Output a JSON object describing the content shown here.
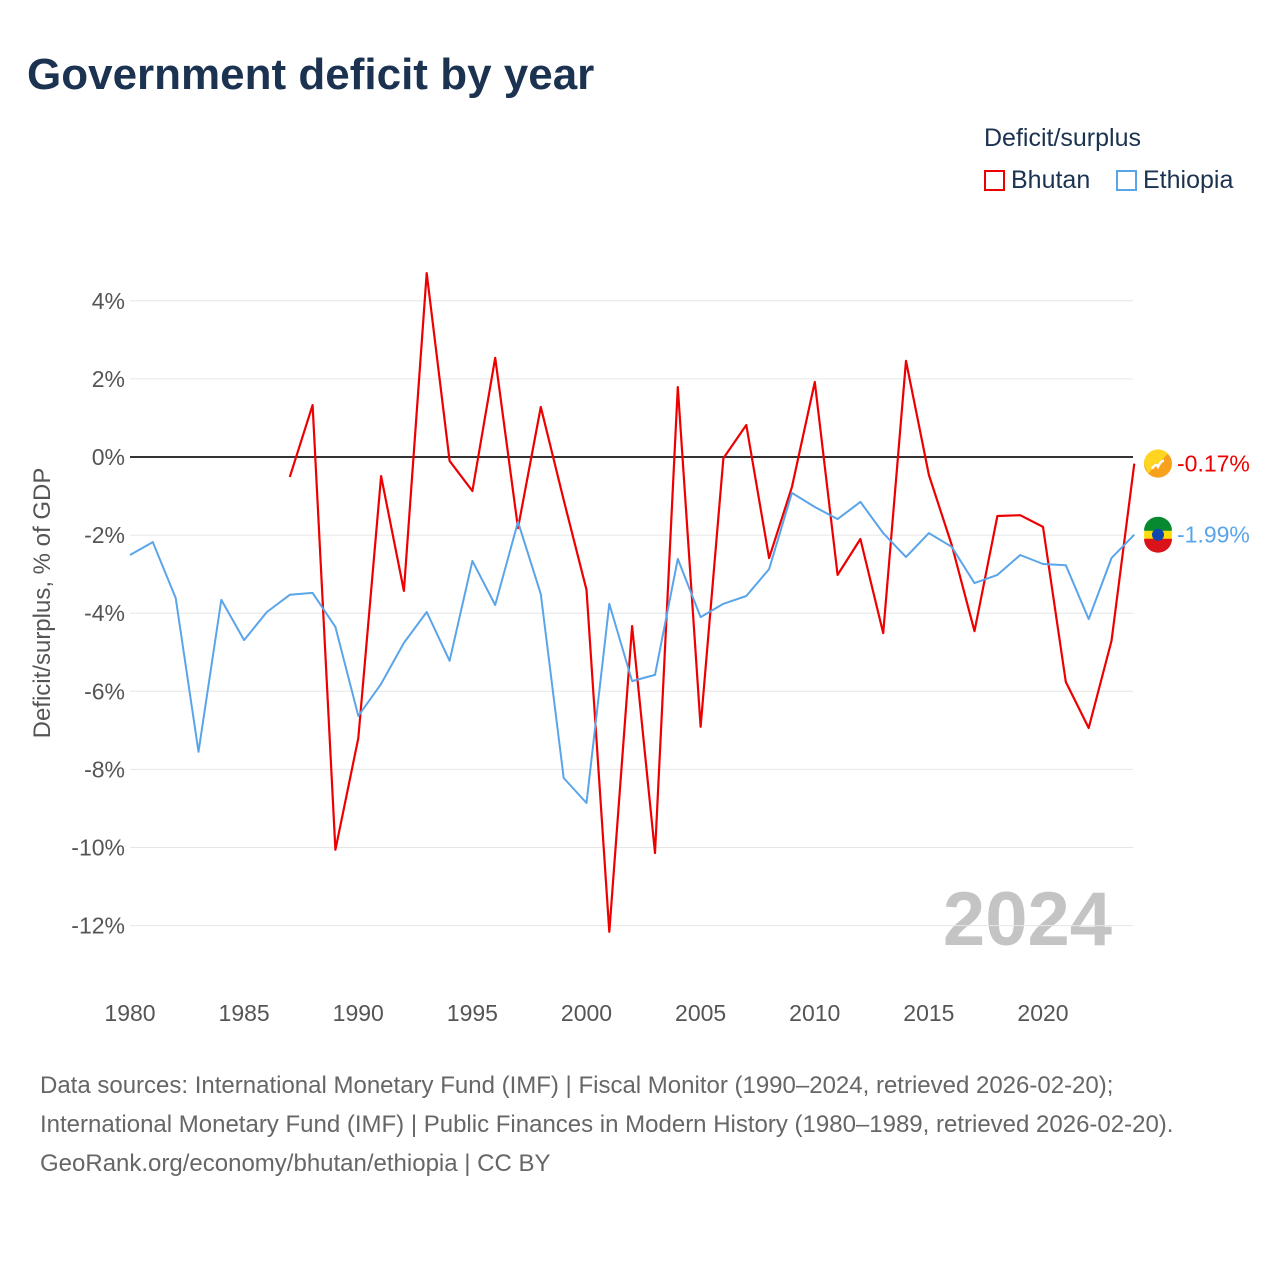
{
  "title": "Government deficit by year",
  "legend": {
    "title": "Deficit/surplus",
    "items": [
      {
        "name": "Bhutan",
        "color": "#ee0000"
      },
      {
        "name": "Ethiopia",
        "color": "#5aa5ea"
      }
    ]
  },
  "watermark_year": "2024",
  "footer": {
    "sources": "Data sources: International Monetary Fund (IMF) | Fiscal Monitor (1990–2024, retrieved 2026-02-20); International Monetary Fund (IMF) | Public Finances in Modern History (1980–1989, retrieved 2026-02-20).",
    "credit": "GeoRank.org/economy/bhutan/ethiopia | CC BY"
  },
  "chart_data": {
    "type": "line",
    "title": "Government deficit by year",
    "xlabel": "",
    "ylabel": "Deficit/surplus, % of GDP",
    "xlim": [
      1980,
      2024
    ],
    "ylim": [
      -13.5,
      5
    ],
    "xticks": [
      1980,
      1985,
      1990,
      1995,
      2000,
      2005,
      2010,
      2015,
      2020
    ],
    "yticks": [
      4,
      2,
      0,
      -2,
      -4,
      -6,
      -8,
      -10,
      -12
    ],
    "ytick_labels": [
      "4%",
      "2%",
      "0%",
      "-2%",
      "-4%",
      "-6%",
      "-8%",
      "-10%",
      "-12%"
    ],
    "grid": true,
    "legend_position": "top-right",
    "end_labels": [
      "-0.17%",
      "-1.99%"
    ],
    "series": [
      {
        "name": "Bhutan",
        "color": "#ee0000",
        "start_year": 1987,
        "values": [
          -0.51,
          1.33,
          -10.06,
          -7.2,
          -0.49,
          -3.43,
          4.71,
          -0.1,
          -0.87,
          2.54,
          -1.82,
          1.28,
          -1.1,
          -3.4,
          -12.16,
          -4.33,
          -10.14,
          1.79,
          -6.91,
          -0.03,
          0.82,
          -2.59,
          -0.77,
          1.92,
          -3.02,
          -2.1,
          -4.51,
          2.46,
          -0.46,
          -2.25,
          -4.46,
          -1.51,
          -1.49,
          -1.79,
          -5.76,
          -6.94,
          -4.71,
          -0.17
        ]
      },
      {
        "name": "Ethiopia",
        "color": "#5aa5ea",
        "start_year": 1980,
        "values": [
          -2.51,
          -2.18,
          -3.61,
          -7.55,
          -3.66,
          -4.69,
          -3.97,
          -3.53,
          -3.48,
          -4.35,
          -6.63,
          -5.81,
          -4.76,
          -3.97,
          -5.22,
          -2.66,
          -3.79,
          -1.66,
          -3.51,
          -8.22,
          -8.86,
          -3.76,
          -5.74,
          -5.58,
          -2.61,
          -4.1,
          -3.76,
          -3.56,
          -2.87,
          -0.92,
          -1.28,
          -1.59,
          -1.15,
          -1.95,
          -2.56,
          -1.95,
          -2.3,
          -3.23,
          -3.02,
          -2.51,
          -2.74,
          -2.77,
          -4.15,
          -2.59,
          -1.99
        ]
      }
    ]
  }
}
